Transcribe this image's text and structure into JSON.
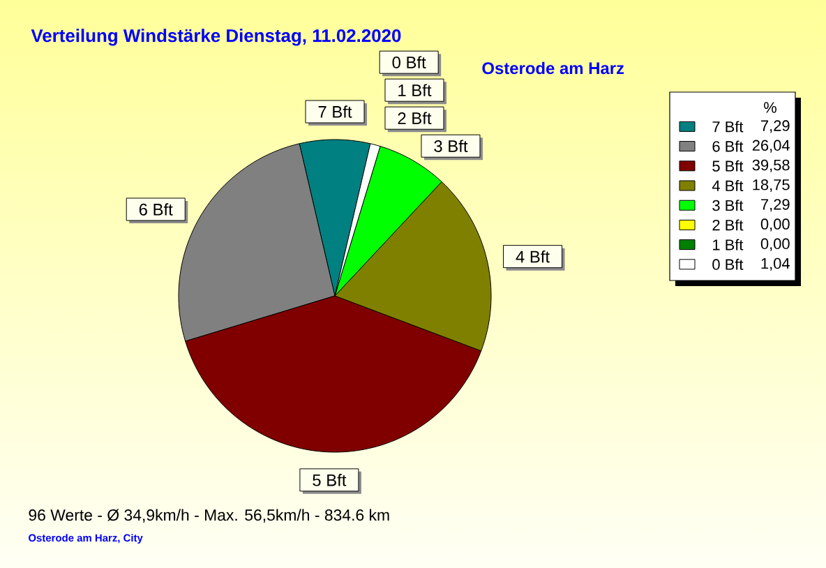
{
  "chart_data": {
    "type": "pie",
    "title": "Verteilung Windstärke Dienstag, 11.02.2020",
    "subtitle": "Osterode am Harz",
    "categories": [
      "7 Bft",
      "6 Bft",
      "5 Bft",
      "4 Bft",
      "3 Bft",
      "2 Bft",
      "1 Bft",
      "0 Bft"
    ],
    "values": [
      7.29,
      26.04,
      39.58,
      18.75,
      7.29,
      0,
      0,
      1.04
    ],
    "colors": [
      "#008080",
      "#808080",
      "#800000",
      "#808000",
      "#00ff00",
      "#ffff00",
      "#008000",
      "#ffffff"
    ],
    "value_labels": [
      "7,29",
      "26,04",
      "39,58",
      "18,75",
      "7,29",
      "0,00",
      "0,00",
      "1,04"
    ],
    "legend": "top right",
    "legend_title": "%",
    "annotations": [
      "96 Werte - Ø 34,9km/h - Max. 56,5km/h - 834.6 km",
      "Osterode am Harz, City"
    ]
  }
}
